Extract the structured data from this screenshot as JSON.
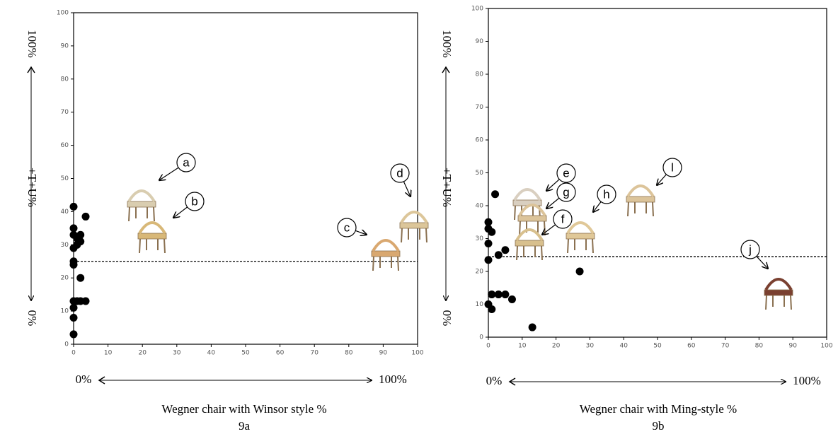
{
  "chart_data": [
    {
      "type": "scatter",
      "xlim": [
        0,
        100
      ],
      "ylim": [
        0,
        100
      ],
      "xticks": [
        0,
        10,
        20,
        30,
        40,
        50,
        60,
        70,
        80,
        90,
        100
      ],
      "yticks": [
        0,
        10,
        20,
        30,
        40,
        50,
        60,
        70,
        80,
        90,
        100
      ],
      "color": "#000000",
      "x": [
        0,
        0,
        0,
        1,
        2,
        2,
        0,
        1,
        3.5,
        0,
        0,
        2,
        0,
        1,
        2,
        3.5,
        0,
        0,
        0
      ],
      "y": [
        41.5,
        35,
        33,
        32,
        33,
        31,
        29,
        30,
        38.5,
        25,
        24,
        20,
        13,
        13,
        13,
        13,
        11,
        8,
        3
      ],
      "hline": 25,
      "x_arrow_labels": [
        "0%",
        "100%"
      ],
      "y_arrow_labels": [
        "0%",
        "100%"
      ],
      "ylabel": "+T+U%",
      "xlabel": "Wegner chair with Winsor style %",
      "caption": "9a",
      "annotations": [
        "a",
        "b",
        "c",
        "d"
      ]
    },
    {
      "type": "scatter",
      "xlim": [
        0,
        100
      ],
      "ylim": [
        0,
        100
      ],
      "xticks": [
        0,
        10,
        20,
        30,
        40,
        50,
        60,
        70,
        80,
        90,
        100
      ],
      "yticks": [
        0,
        10,
        20,
        30,
        40,
        50,
        60,
        70,
        80,
        90,
        100
      ],
      "color": "#000000",
      "x": [
        0,
        0,
        1,
        2,
        0,
        0,
        3,
        5,
        1,
        3,
        5,
        0,
        1,
        7,
        13,
        27
      ],
      "y": [
        35,
        33,
        32,
        43.5,
        28.5,
        23.5,
        25,
        26.5,
        13,
        13,
        13,
        10,
        8.5,
        11.5,
        3,
        20
      ],
      "hline": 24.5,
      "x_arrow_labels": [
        "0%",
        "100%"
      ],
      "y_arrow_labels": [
        "0%",
        "100%"
      ],
      "ylabel": "+T+U%",
      "xlabel": "Wegner chair with Ming-style %",
      "caption": "9b",
      "annotations": [
        "e",
        "g",
        "h",
        "f",
        "l",
        "j"
      ]
    }
  ]
}
